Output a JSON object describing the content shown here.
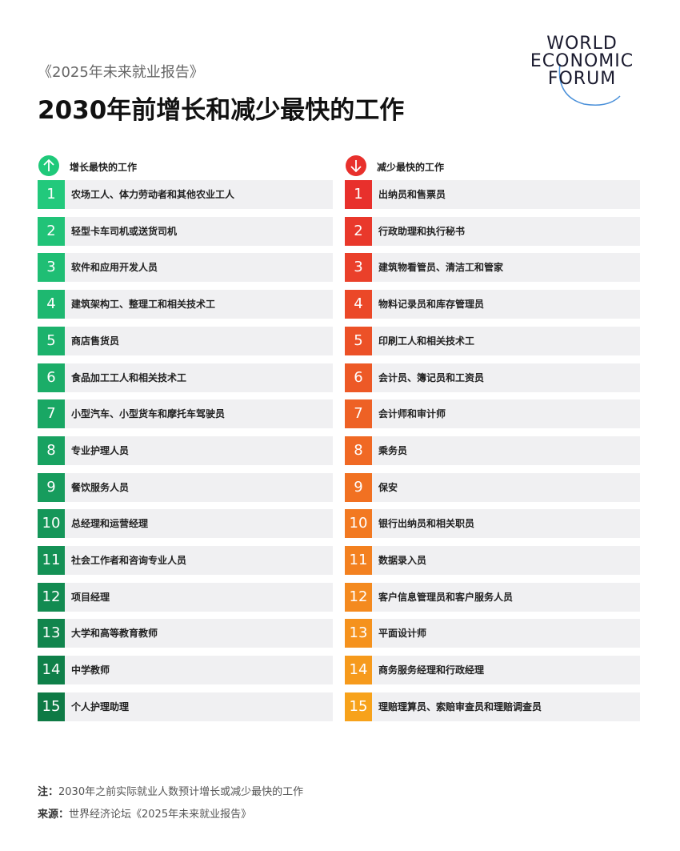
{
  "header": {
    "subtitle": "《2025年未来就业报告》",
    "title": "2030年前增长和减少最快的工作"
  },
  "logo": {
    "lines": [
      "WORLD",
      "ECONOMIC",
      "FORUM"
    ]
  },
  "columns": [
    {
      "heading": "增长最快的工作",
      "items": [
        {
          "rank": 1,
          "job": "农场工人、体力劳动者和其他农业工人"
        },
        {
          "rank": 2,
          "job": "轻型卡车司机或送货司机"
        },
        {
          "rank": 3,
          "job": "软件和应用开发人员"
        },
        {
          "rank": 4,
          "job": "建筑架构工、整理工和相关技术工"
        },
        {
          "rank": 5,
          "job": "商店售货员"
        },
        {
          "rank": 6,
          "job": "食品加工工人和相关技术工"
        },
        {
          "rank": 7,
          "job": "小型汽车、小型货车和摩托车驾驶员"
        },
        {
          "rank": 8,
          "job": "专业护理人员"
        },
        {
          "rank": 9,
          "job": "餐饮服务人员"
        },
        {
          "rank": 10,
          "job": "总经理和运营经理"
        },
        {
          "rank": 11,
          "job": "社会工作者和咨询专业人员"
        },
        {
          "rank": 12,
          "job": "项目经理"
        },
        {
          "rank": 13,
          "job": "大学和高等教育教师"
        },
        {
          "rank": 14,
          "job": "中学教师"
        },
        {
          "rank": 15,
          "job": "个人护理助理"
        }
      ]
    },
    {
      "heading": "减少最快的工作",
      "items": [
        {
          "rank": 1,
          "job": "出纳员和售票员"
        },
        {
          "rank": 2,
          "job": "行政助理和执行秘书"
        },
        {
          "rank": 3,
          "job": "建筑物看管员、清洁工和管家"
        },
        {
          "rank": 4,
          "job": "物料记录员和库存管理员"
        },
        {
          "rank": 5,
          "job": "印刷工人和相关技术工"
        },
        {
          "rank": 6,
          "job": "会计员、簿记员和工资员"
        },
        {
          "rank": 7,
          "job": "会计师和审计师"
        },
        {
          "rank": 8,
          "job": "乘务员"
        },
        {
          "rank": 9,
          "job": "保安"
        },
        {
          "rank": 10,
          "job": "银行出纳员和相关职员"
        },
        {
          "rank": 11,
          "job": "数据录入员"
        },
        {
          "rank": 12,
          "job": "客户信息管理员和客户服务人员"
        },
        {
          "rank": 13,
          "job": "平面设计师"
        },
        {
          "rank": 14,
          "job": "商务服务经理和行政经理"
        },
        {
          "rank": 15,
          "job": "理赔理算员、索赔审查员和理赔调查员"
        }
      ]
    }
  ],
  "footer": {
    "note_label": "注：",
    "note": "2030年之前实际就业人数预计增长或减少最快的工作",
    "source_label": "来源：",
    "source": "世界经济论坛《2025年未来就业报告》"
  }
}
